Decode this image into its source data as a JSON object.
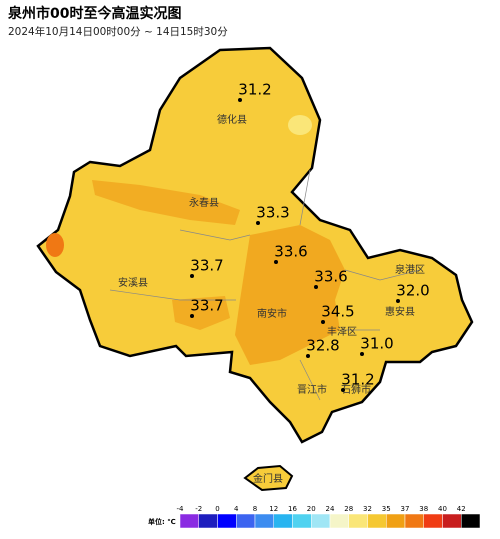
{
  "header": {
    "title": "泉州市00时至今高温实况图",
    "subtitle": "2024年10月14日00时00分 ~ 14日15时30分"
  },
  "places": [
    {
      "label": "德化县"
    },
    {
      "label": "永春县"
    },
    {
      "label": "泉港区"
    },
    {
      "label": "安溪县"
    },
    {
      "label": "南安市"
    },
    {
      "label": "惠安县"
    },
    {
      "label": "丰泽区"
    },
    {
      "label": "晋江市"
    },
    {
      "label": "石狮市"
    },
    {
      "label": "金门县"
    }
  ],
  "readings": [
    {
      "value": "31.2"
    },
    {
      "value": "33.3"
    },
    {
      "value": "33.6"
    },
    {
      "value": "33.7"
    },
    {
      "value": "33.6"
    },
    {
      "value": "32.0"
    },
    {
      "value": "33.7"
    },
    {
      "value": "34.5"
    },
    {
      "value": "32.8"
    },
    {
      "value": "31.0"
    },
    {
      "value": "31.2"
    }
  ],
  "legend": {
    "unit": "单位: ℃",
    "ticks": [
      -4,
      -2,
      0,
      4,
      8,
      12,
      16,
      20,
      24,
      28,
      32,
      35,
      37,
      38,
      40,
      42
    ],
    "colors": [
      "#8a2be2",
      "#1e1ebe",
      "#0000ff",
      "#3c64f0",
      "#3c8cf0",
      "#28b4f0",
      "#50d2f0",
      "#a0e6f5",
      "#f5f5c8",
      "#fae678",
      "#f5c832",
      "#f0a014",
      "#f07814",
      "#f03c14",
      "#c81e1e",
      "#000000"
    ]
  }
}
